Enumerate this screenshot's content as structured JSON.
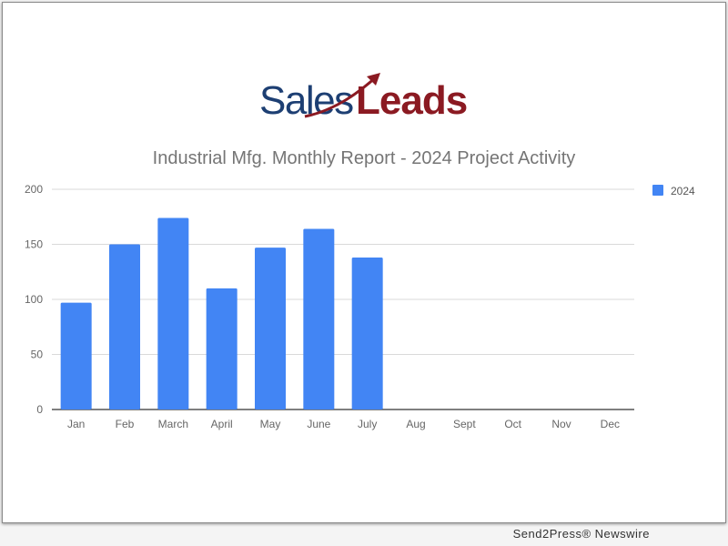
{
  "logo": {
    "text_part1": "Sales",
    "text_part2": "Leads",
    "colors": {
      "sales": "#1d3f73",
      "leads": "#8b1a22"
    }
  },
  "footer": "Send2Press® Newswire",
  "chart_data": {
    "type": "bar",
    "title": "Industrial Mfg. Monthly Report - 2024 Project Activity",
    "categories": [
      "Jan",
      "Feb",
      "March",
      "April",
      "May",
      "June",
      "July",
      "Aug",
      "Sept",
      "Oct",
      "Nov",
      "Dec"
    ],
    "series": [
      {
        "name": "2024",
        "color": "#4285f4",
        "values": [
          97,
          150,
          174,
          110,
          147,
          164,
          138,
          null,
          null,
          null,
          null,
          null
        ]
      }
    ],
    "ylim": [
      0,
      200
    ],
    "yticks": [
      0,
      50,
      100,
      150,
      200
    ],
    "xlabel": "",
    "ylabel": "",
    "grid": true,
    "legend": "right"
  }
}
